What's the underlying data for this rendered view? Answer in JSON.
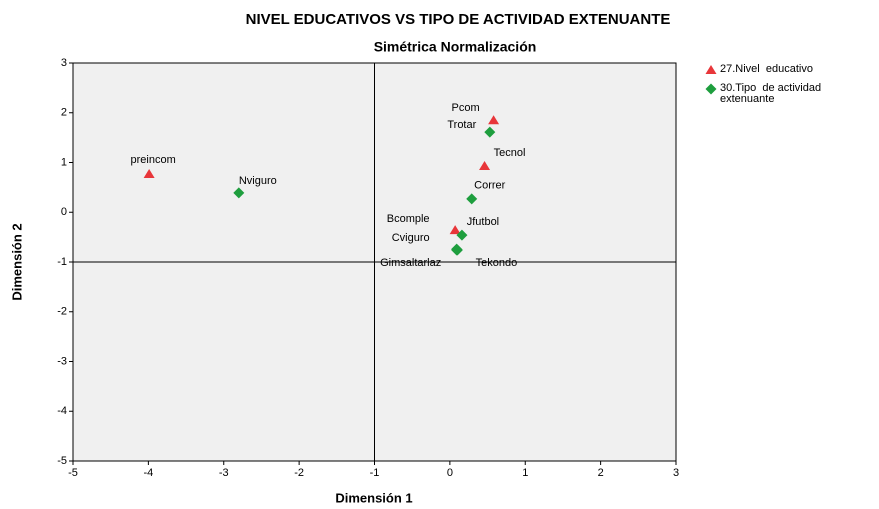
{
  "chart_data": {
    "type": "scatter",
    "title": "NIVEL EDUCATIVOS VS TIPO DE ACTIVIDAD EXTENUANTE",
    "subtitle": "Simétrica Normalización",
    "x_label": "Dimensión 1",
    "y_label": "Dimensión 2",
    "xlim": [
      -5,
      3
    ],
    "ylim": [
      -5,
      3
    ],
    "xticks": [
      -5,
      -4,
      -3,
      -2,
      -1,
      0,
      1,
      2,
      3
    ],
    "yticks": [
      -5,
      -4,
      -3,
      -2,
      -1,
      0,
      1,
      2,
      3
    ],
    "reference_lines": {
      "x": -1,
      "y": -1
    },
    "series": [
      {
        "name": "27.Nivel  educativo",
        "color": "#e8363a",
        "marker": "triangle",
        "labels": [
          "preincom",
          "Pcom",
          "Tecnol",
          "Bcomple"
        ],
        "x": [
          -3.99,
          0.58,
          0.46,
          0.07
        ],
        "values": [
          0.77,
          1.85,
          0.93,
          -0.36
        ]
      },
      {
        "name": "30.Tipo  de actividad extenuante",
        "color": "#1e9e3e",
        "marker": "diamond",
        "labels": [
          "Nviguro",
          "Trotar",
          "Correr",
          "Jfutbol",
          "Cviguro",
          "Gimsaltarlaz",
          "Tekondo"
        ],
        "x": [
          -2.8,
          0.53,
          0.29,
          0.16,
          0.09,
          0.09,
          0.1
        ],
        "values": [
          0.39,
          1.61,
          0.27,
          -0.46,
          -0.74,
          -0.76,
          -0.76
        ]
      }
    ]
  }
}
